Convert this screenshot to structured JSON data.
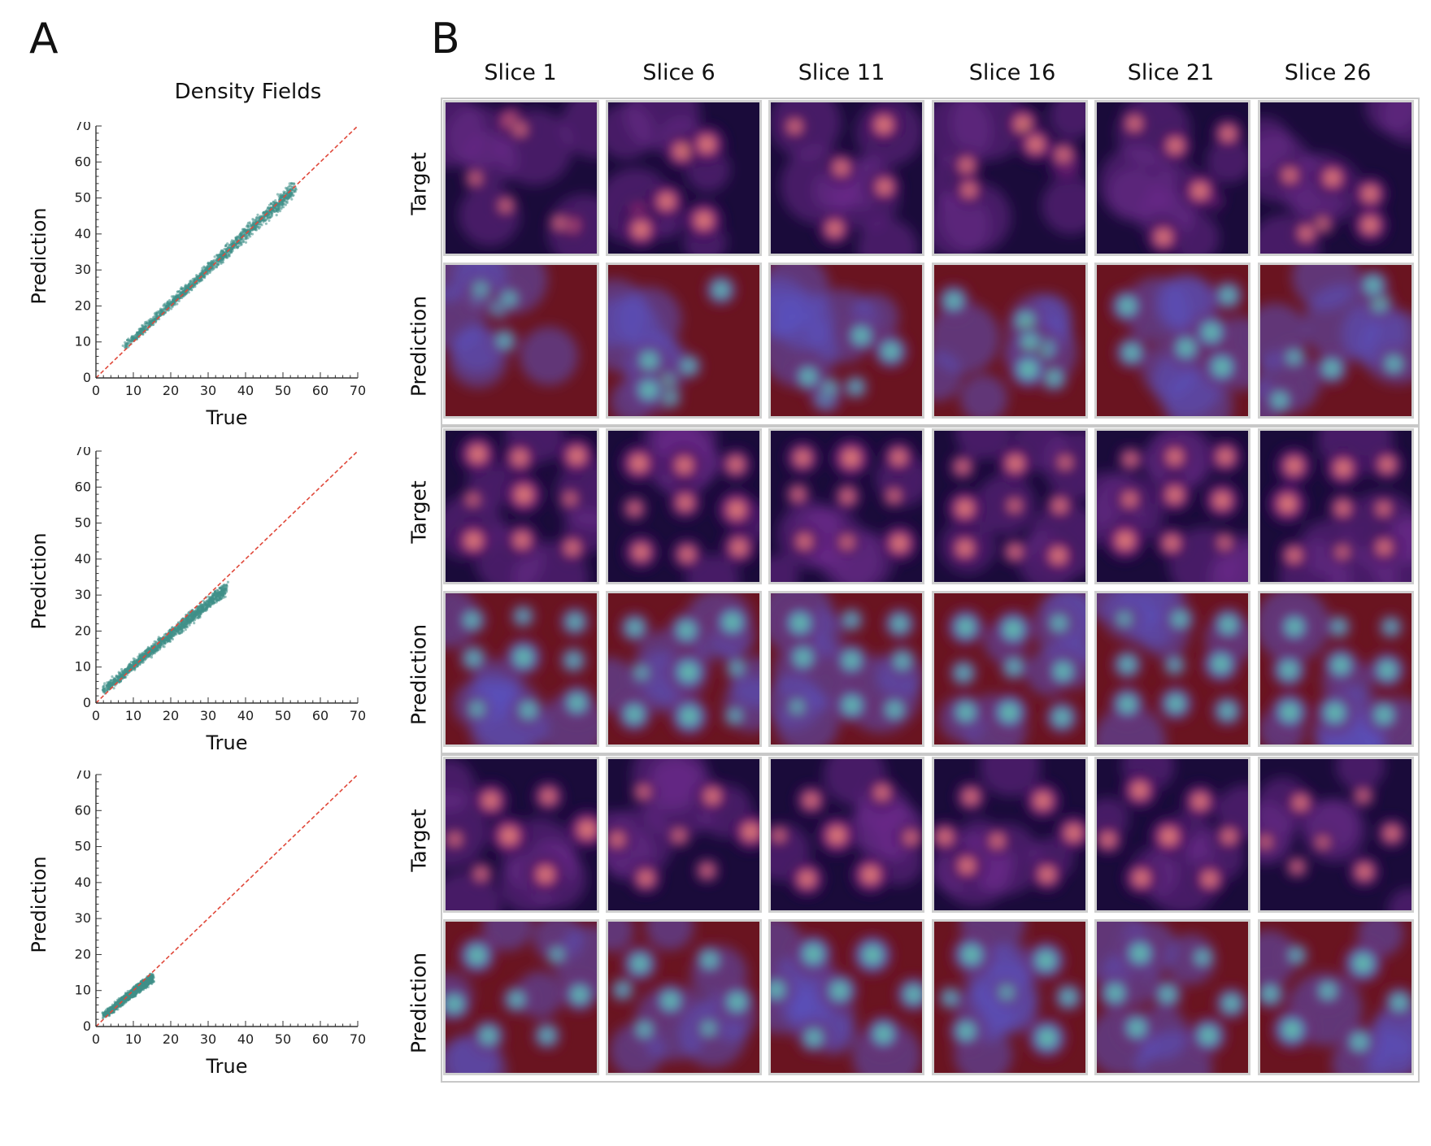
{
  "panels": {
    "a_label": "A",
    "b_label": "B"
  },
  "panel_a": {
    "title": "Density Fields"
  },
  "chart_data": [
    {
      "type": "scatter",
      "title": "Density Fields",
      "xlabel": "True",
      "ylabel": "Prediction",
      "xlim": [
        0,
        70
      ],
      "ylim": [
        0,
        70
      ],
      "xticks": [
        "0",
        "10",
        "20",
        "30",
        "40",
        "50",
        "60",
        "70"
      ],
      "yticks": [
        "0",
        "10",
        "20",
        "30",
        "40",
        "50",
        "60",
        "70"
      ],
      "reference_line": "y = x",
      "point_cloud": {
        "x_range": [
          7.5,
          53
        ],
        "y_low": [
          7.5,
          50
        ],
        "y_high": [
          9.5,
          55
        ]
      }
    },
    {
      "type": "scatter",
      "xlabel": "True",
      "ylabel": "Prediction",
      "xlim": [
        0,
        70
      ],
      "ylim": [
        0,
        70
      ],
      "xticks": [
        "0",
        "10",
        "20",
        "30",
        "40",
        "50",
        "60",
        "70"
      ],
      "yticks": [
        "0",
        "10",
        "20",
        "30",
        "40",
        "50",
        "60",
        "70"
      ],
      "reference_line": "y = x",
      "point_cloud": {
        "x_range": [
          2,
          35
        ],
        "y_low": [
          2,
          30
        ],
        "y_high": [
          5,
          34
        ]
      }
    },
    {
      "type": "scatter",
      "xlabel": "True",
      "ylabel": "Prediction",
      "xlim": [
        0,
        70
      ],
      "ylim": [
        0,
        70
      ],
      "xticks": [
        "0",
        "10",
        "20",
        "30",
        "40",
        "50",
        "60",
        "70"
      ],
      "yticks": [
        "0",
        "10",
        "20",
        "30",
        "40",
        "50",
        "60",
        "70"
      ],
      "reference_line": "y = x",
      "point_cloud": {
        "x_range": [
          2,
          15
        ],
        "y_low": [
          2,
          12
        ],
        "y_high": [
          4,
          15
        ]
      }
    }
  ],
  "panel_b": {
    "columns": [
      "Slice 1",
      "Slice 6",
      "Slice 11",
      "Slice 16",
      "Slice 21",
      "Slice 26"
    ],
    "row_labels": [
      "Target",
      "Prediction",
      "Target",
      "Prediction",
      "Target",
      "Prediction"
    ],
    "colormaps": {
      "target": "magma",
      "prediction": "turbo-like"
    }
  },
  "colors": {
    "scatter_points": "#3f8f88",
    "reference_line": "#e0483a",
    "axis": "#333333"
  }
}
